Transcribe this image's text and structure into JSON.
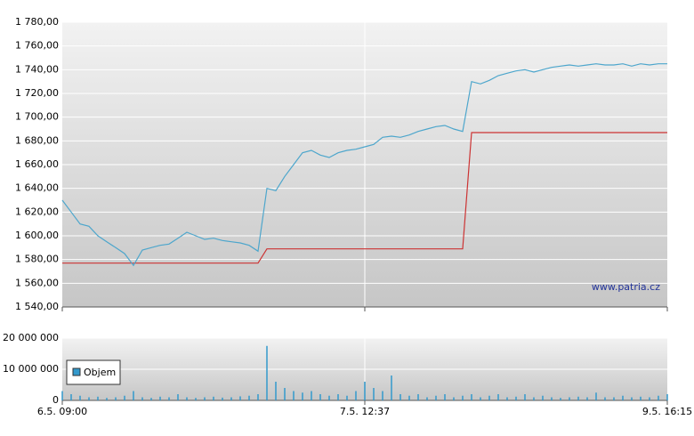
{
  "chart_data": [
    {
      "type": "line",
      "watermark": "www.patria.cz",
      "xlim": [
        0,
        68
      ],
      "ylim": [
        1540,
        1780
      ],
      "yticks": [
        {
          "value": 1540,
          "label": "1 540,00"
        },
        {
          "value": 1560,
          "label": "1 560,00"
        },
        {
          "value": 1580,
          "label": "1 580,00"
        },
        {
          "value": 1600,
          "label": "1 600,00"
        },
        {
          "value": 1620,
          "label": "1 620,00"
        },
        {
          "value": 1640,
          "label": "1 640,00"
        },
        {
          "value": 1660,
          "label": "1 660,00"
        },
        {
          "value": 1680,
          "label": "1 680,00"
        },
        {
          "value": 1700,
          "label": "1 700,00"
        },
        {
          "value": 1720,
          "label": "1 720,00"
        },
        {
          "value": 1740,
          "label": "1 740,00"
        },
        {
          "value": 1760,
          "label": "1 760,00"
        },
        {
          "value": 1780,
          "label": "1 780,00"
        }
      ],
      "grid": true,
      "series": [
        {
          "color": "#cc3333",
          "values": [
            1577,
            1577,
            1577,
            1577,
            1577,
            1577,
            1577,
            1577,
            1577,
            1577,
            1577,
            1577,
            1577,
            1577,
            1577,
            1577,
            1577,
            1577,
            1577,
            1577,
            1577,
            1577,
            1577,
            1589,
            1589,
            1589,
            1589,
            1589,
            1589,
            1589,
            1589,
            1589,
            1589,
            1589,
            1589,
            1589,
            1589,
            1589,
            1589,
            1589,
            1589,
            1589,
            1589,
            1589,
            1589,
            1589,
            1687,
            1687,
            1687,
            1687,
            1687,
            1687,
            1687,
            1687,
            1687,
            1687,
            1687,
            1687,
            1687,
            1687,
            1687,
            1687,
            1687,
            1687,
            1687,
            1687,
            1687,
            1687,
            1687
          ]
        },
        {
          "color": "#4da6cc",
          "values": [
            1630,
            1620,
            1610,
            1608,
            1600,
            1595,
            1590,
            1585,
            1575,
            1588,
            1590,
            1592,
            1593,
            1598,
            1603,
            1600,
            1597,
            1598,
            1596,
            1595,
            1594,
            1592,
            1587,
            1640,
            1638,
            1650,
            1660,
            1670,
            1672,
            1668,
            1666,
            1670,
            1672,
            1673,
            1675,
            1677,
            1683,
            1684,
            1683,
            1685,
            1688,
            1690,
            1692,
            1693,
            1690,
            1688,
            1730,
            1728,
            1731,
            1735,
            1737,
            1739,
            1740,
            1738,
            1740,
            1742,
            1743,
            1744,
            1743,
            1744,
            1745,
            1744,
            1744,
            1745,
            1743,
            1745,
            1744,
            1745,
            1745
          ]
        }
      ]
    },
    {
      "type": "bar",
      "xlim": [
        0,
        68
      ],
      "xticks": [
        {
          "value": 0,
          "label": "6.5. 09:00"
        },
        {
          "value": 34,
          "label": "7.5. 12:37"
        },
        {
          "value": 68,
          "label": "9.5. 16:15"
        }
      ],
      "ylim": [
        0,
        20000000
      ],
      "yticks": [
        0,
        {
          "value": 10000000,
          "label": "10 000 000"
        },
        {
          "value": 20000000,
          "label": "20 000 000"
        }
      ],
      "grid": true,
      "series": [
        {
          "name": "Objem",
          "color": "#3399cc",
          "values": [
            3000000,
            2000000,
            1500000,
            1000000,
            1200000,
            800000,
            1000000,
            1500000,
            3000000,
            1000000,
            800000,
            1200000,
            1000000,
            2000000,
            1000000,
            800000,
            1000000,
            1200000,
            900000,
            1000000,
            1300000,
            1500000,
            2000000,
            17500000,
            6000000,
            4000000,
            3000000,
            2500000,
            3000000,
            2000000,
            1500000,
            2000000,
            1500000,
            3000000,
            6000000,
            4000000,
            3000000,
            8000000,
            2000000,
            1500000,
            2000000,
            1000000,
            1500000,
            2000000,
            1000000,
            1500000,
            2000000,
            1000000,
            1500000,
            2000000,
            1000000,
            1200000,
            2000000,
            1000000,
            1500000,
            1000000,
            800000,
            1000000,
            1200000,
            1000000,
            2500000,
            1000000,
            1000000,
            1500000,
            1000000,
            1200000,
            1000000,
            1500000,
            2000000
          ]
        }
      ]
    }
  ]
}
